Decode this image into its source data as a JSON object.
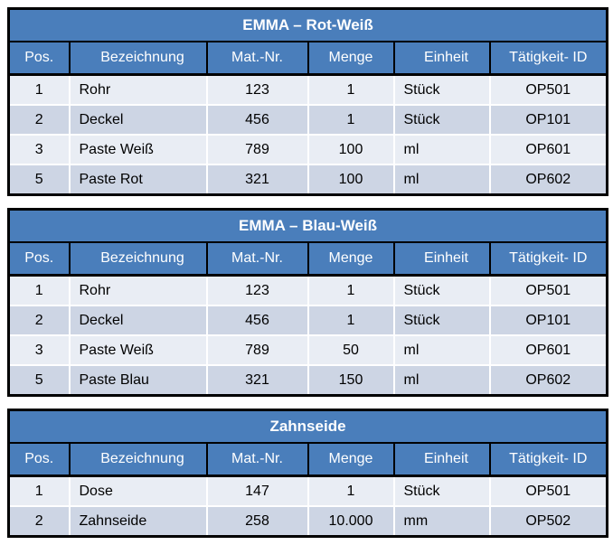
{
  "page": {
    "background": "#FFFFFF"
  },
  "colors": {
    "header_blue": "#4A7EBB",
    "band_light": "#E9EDF4",
    "band_dark": "#CDD5E4",
    "table_border": "#000000",
    "row_separator": "#FFFFFF",
    "header_text": "#FFFFFF",
    "body_text": "#000000"
  },
  "tables": [
    {
      "title": "EMMA – Rot-Weiß",
      "columns": [
        "Pos.",
        "Bezeichnung",
        "Mat.-Nr.",
        "Menge",
        "Einheit",
        "Tätigkeit- ID"
      ],
      "rows": [
        [
          "1",
          "Rohr",
          "123",
          "1",
          "Stück",
          "OP501"
        ],
        [
          "2",
          "Deckel",
          "456",
          "1",
          "Stück",
          "OP101"
        ],
        [
          "3",
          "Paste Weiß",
          "789",
          "100",
          "ml",
          "OP601"
        ],
        [
          "5",
          "Paste Rot",
          "321",
          "100",
          "ml",
          "OP602"
        ]
      ]
    },
    {
      "title": "EMMA – Blau-Weiß",
      "columns": [
        "Pos.",
        "Bezeichnung",
        "Mat.-Nr.",
        "Menge",
        "Einheit",
        "Tätigkeit- ID"
      ],
      "rows": [
        [
          "1",
          "Rohr",
          "123",
          "1",
          "Stück",
          "OP501"
        ],
        [
          "2",
          "Deckel",
          "456",
          "1",
          "Stück",
          "OP101"
        ],
        [
          "3",
          "Paste Weiß",
          "789",
          "50",
          "ml",
          "OP601"
        ],
        [
          "5",
          "Paste Blau",
          "321",
          "150",
          "ml",
          "OP602"
        ]
      ]
    },
    {
      "title": "Zahnseide",
      "columns": [
        "Pos.",
        "Bezeichnung",
        "Mat.-Nr.",
        "Menge",
        "Einheit",
        "Tätigkeit- ID"
      ],
      "rows": [
        [
          "1",
          "Dose",
          "147",
          "1",
          "Stück",
          "OP501"
        ],
        [
          "2",
          "Zahnseide",
          "258",
          "10.000",
          "mm",
          "OP502"
        ]
      ]
    }
  ]
}
